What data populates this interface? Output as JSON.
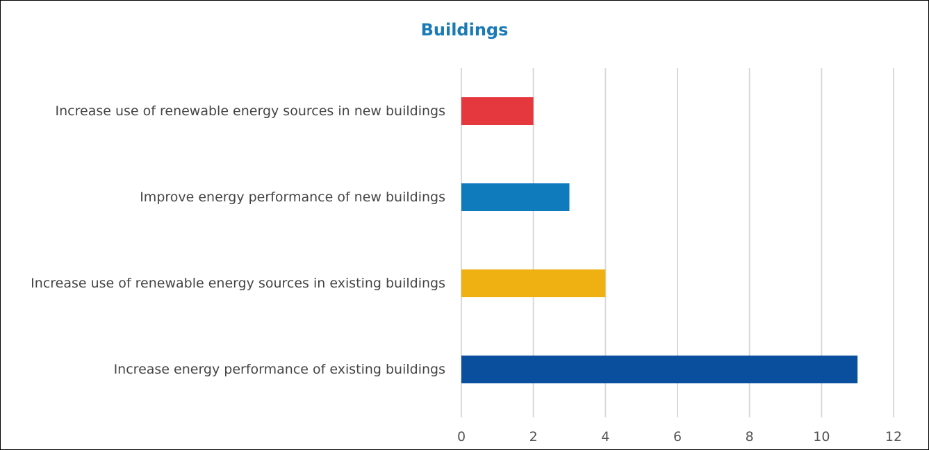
{
  "chart_data": {
    "type": "barh",
    "title": "Buildings",
    "categories": [
      "Increase use of renewable energy sources in new buildings",
      "Improve energy performance of new buildings",
      "Increase use of renewable energy sources in existing buildings",
      "Increase energy performance of existing buildings"
    ],
    "values": [
      2,
      3,
      4,
      11
    ],
    "colors": [
      "#e4373e",
      "#0f7bbd",
      "#eeb111",
      "#0a4f9e"
    ],
    "xlim": [
      0,
      12
    ],
    "xticks": [
      0,
      2,
      4,
      6,
      8,
      10,
      12
    ],
    "grid": true
  }
}
